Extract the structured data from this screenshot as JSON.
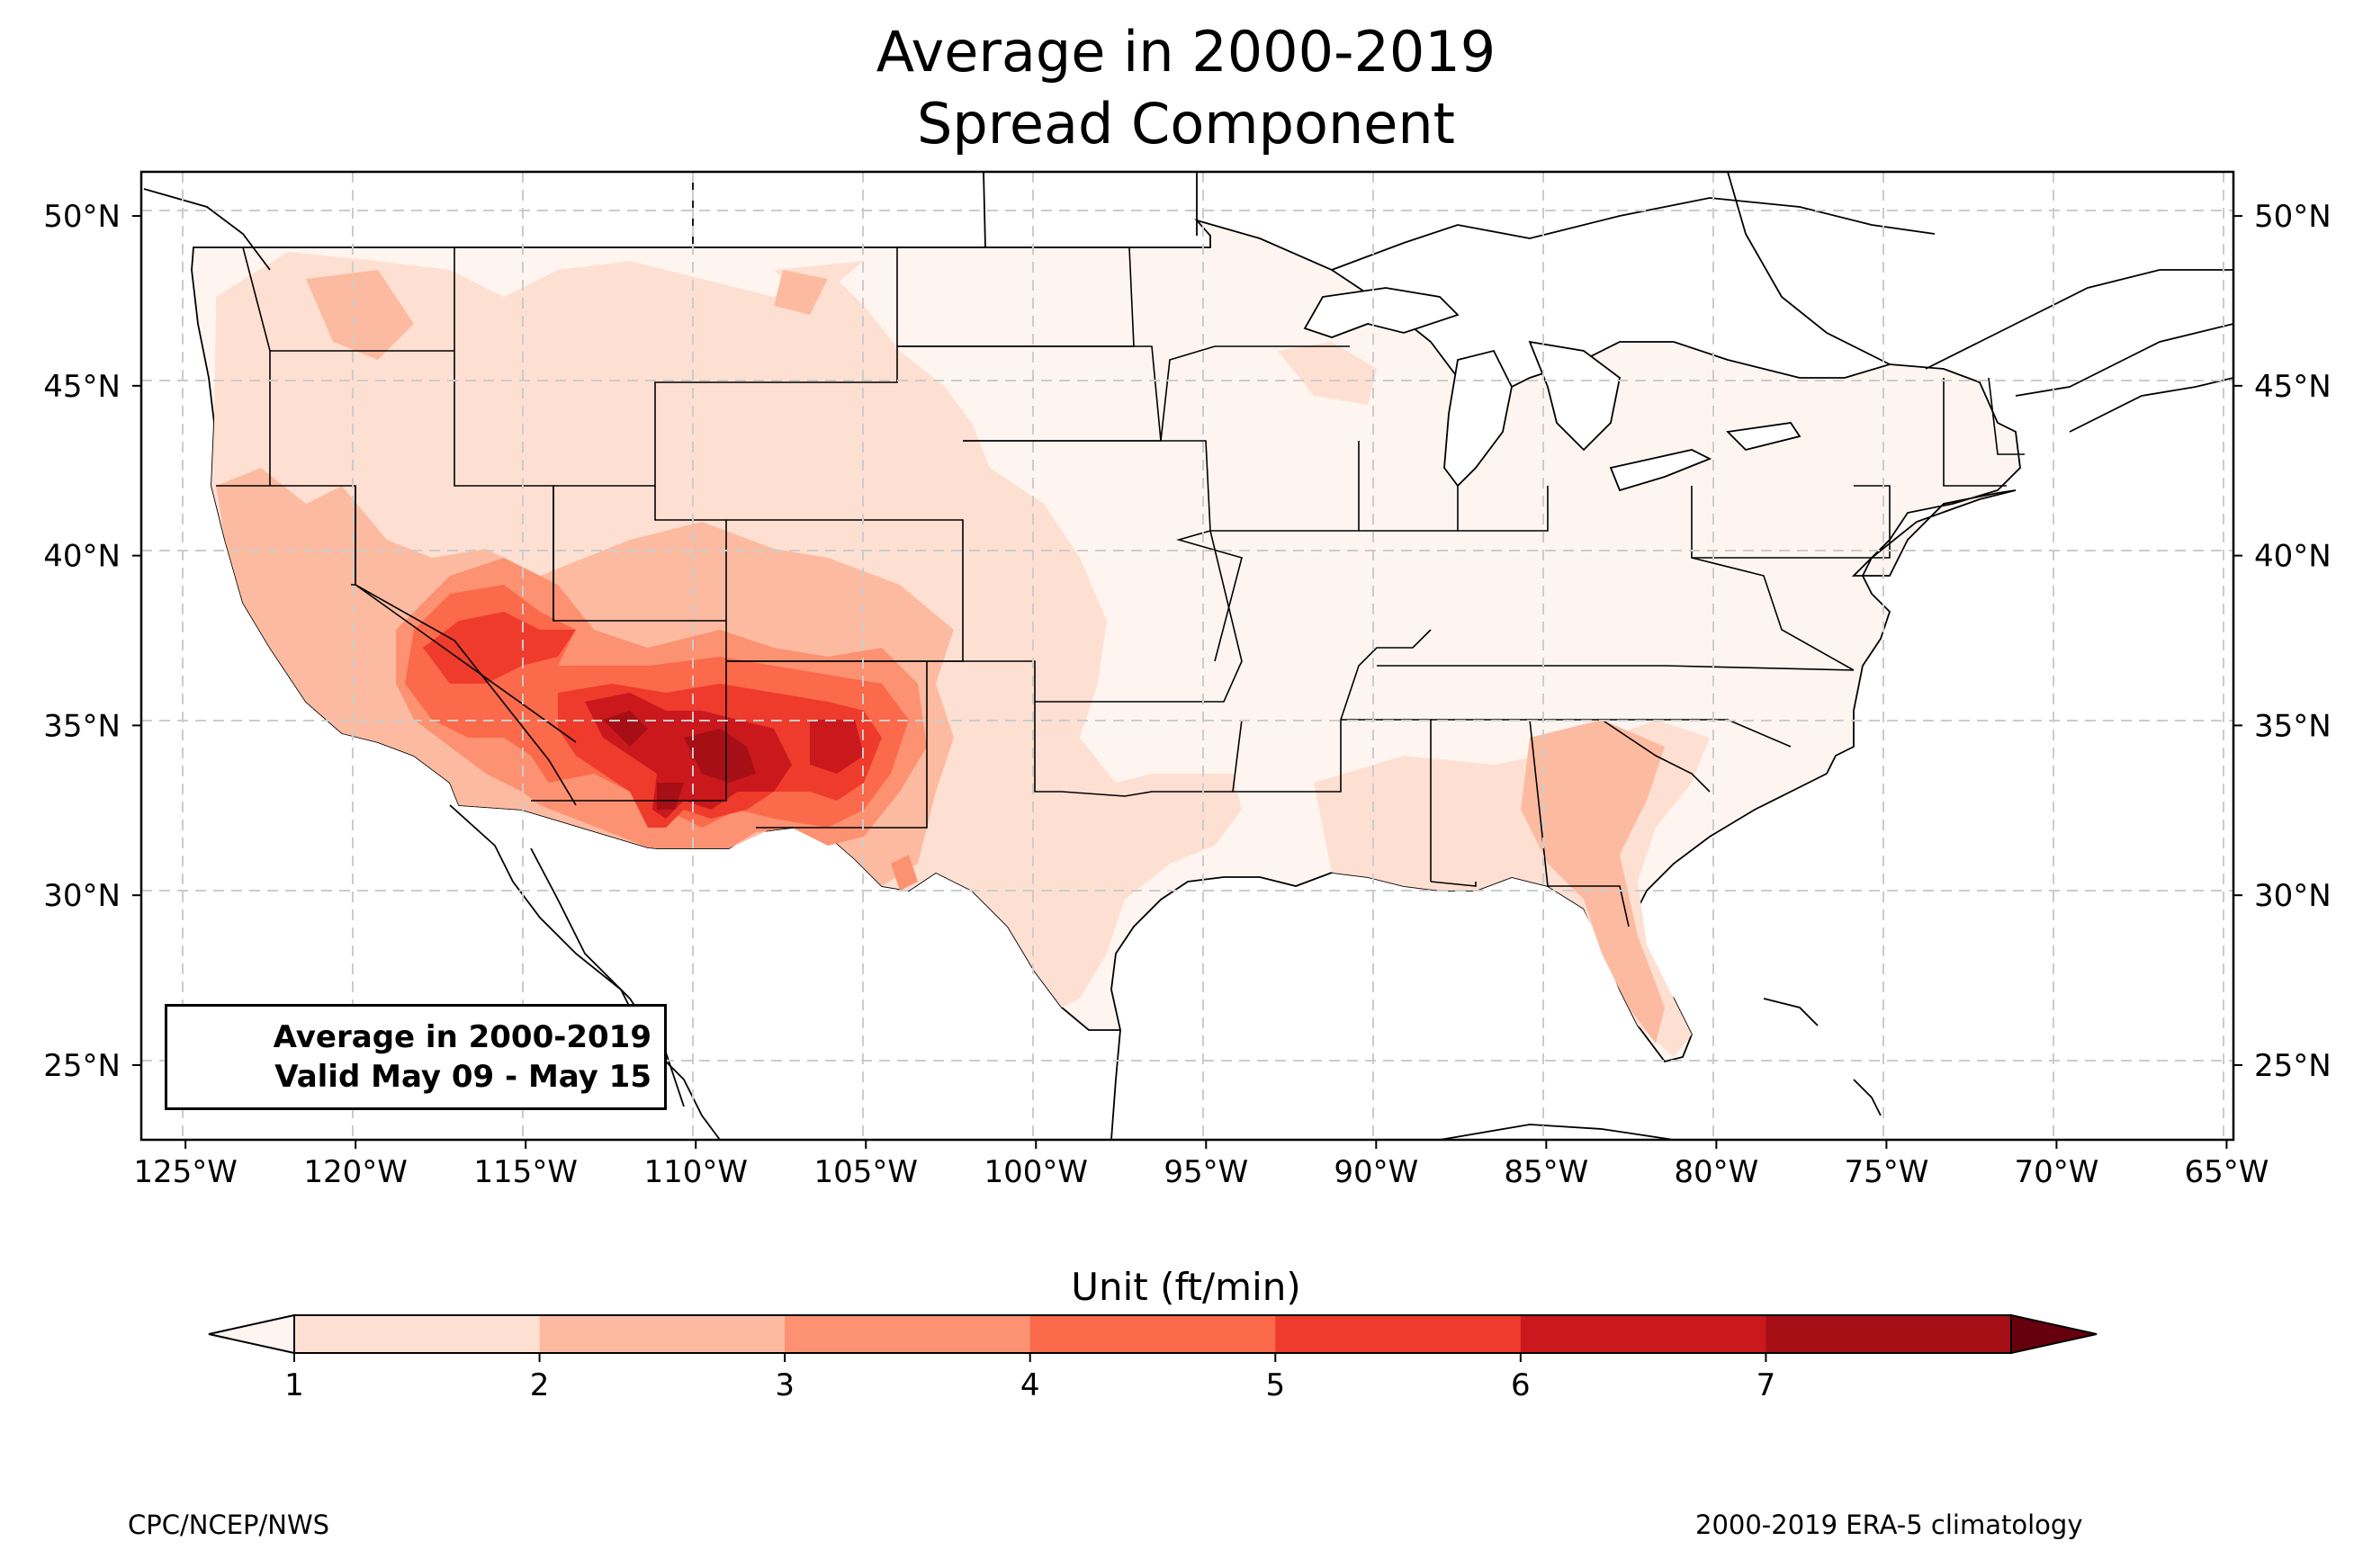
{
  "title": {
    "line1": "Average in 2000-2019",
    "line2": "Spread Component"
  },
  "map": {
    "lon_ticks": [
      "125°W",
      "120°W",
      "115°W",
      "110°W",
      "105°W",
      "100°W",
      "95°W",
      "90°W",
      "85°W",
      "80°W",
      "75°W",
      "70°W",
      "65°W"
    ],
    "lat_ticks": [
      "50°N",
      "45°N",
      "40°N",
      "35°N",
      "30°N",
      "25°N"
    ],
    "extent": {
      "lon_min": -126.3,
      "lon_max": -64.8,
      "lat_min": 22.8,
      "lat_max": 51.3
    },
    "grid": "dashed",
    "infobox": {
      "line1": "Average in 2000-2019",
      "line2": "Valid May 09 - May 15"
    }
  },
  "colorbar": {
    "unit_label": "Unit (ft/min)",
    "ticks": [
      "1",
      "2",
      "3",
      "4",
      "5",
      "6",
      "7"
    ],
    "colors": [
      "#fee0d2",
      "#fcbba1",
      "#fc9272",
      "#fb6a4a",
      "#ef3b2c",
      "#cb181d",
      "#a50f15"
    ],
    "under_color": "#fff5f0",
    "over_color": "#67000d",
    "extend": "both"
  },
  "footer": {
    "left": "CPC/NCEP/NWS",
    "right": "2000-2019 ERA-5 climatology"
  }
}
